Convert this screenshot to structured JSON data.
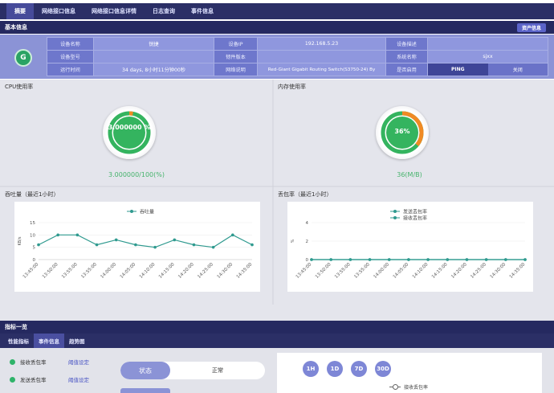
{
  "topnav": {
    "tabs": [
      "摘要",
      "网络接口信息",
      "网络接口信息详情",
      "日志查询",
      "事件信息"
    ]
  },
  "basic": {
    "title": "基本信息",
    "asset_button": "资产信息",
    "logo_glyph": "G",
    "rows": [
      [
        {
          "label": "设备名称",
          "value": "锐捷"
        },
        {
          "label": "设备IP",
          "value": "192.168.5.23"
        },
        {
          "label": "设备描述",
          "value": ""
        }
      ],
      [
        {
          "label": "设备型号",
          "value": ""
        },
        {
          "label": "韧件版本",
          "value": ""
        },
        {
          "label": "系统名称",
          "value": "sjxx"
        }
      ],
      [
        {
          "label": "运行时间",
          "value": "34 days, 8小时11分钟00秒"
        },
        {
          "label": "网络说明",
          "value": "Red-Giant Gigabit Routing Switch(S3750-24) By"
        },
        {
          "label": "是否启用",
          "value": ""
        }
      ]
    ],
    "ping_label": "PING",
    "close_label": "关闭"
  },
  "cpu": {
    "title": "CPU使用率",
    "gauge_text": "3.000000 %",
    "percent": 3,
    "caption": "3.000000/100(%)"
  },
  "memory": {
    "title": "内存使用率",
    "gauge_text": "36%",
    "percent": 36,
    "caption": "36(M/B)"
  },
  "throughput": {
    "title": "吞吐量（最近1小时）",
    "chart_data": {
      "type": "line",
      "x": [
        "13:45:00",
        "13:50:00",
        "13:55:00",
        "13:55:00",
        "14:00:00",
        "14:05:00",
        "14:10:00",
        "14:15:00",
        "14:20:00",
        "14:25:00",
        "14:30:00",
        "14:35:00"
      ],
      "series": [
        {
          "name": "吞吐量",
          "values": [
            6,
            10,
            10,
            6,
            8,
            6,
            5,
            8,
            6,
            5,
            10,
            6
          ]
        }
      ],
      "ylabel": "KB/s",
      "yticks": [
        0,
        5,
        10,
        15
      ],
      "ylim": [
        0,
        15
      ],
      "color": "#2f9a8f"
    }
  },
  "packet_loss": {
    "title": "丢包率（最近1小时）",
    "chart_data": {
      "type": "line",
      "x": [
        "13:45:00",
        "13:50:00",
        "13:55:00",
        "13:55:00",
        "14:00:00",
        "14:05:00",
        "14:10:00",
        "14:15:00",
        "14:20:00",
        "14:25:00",
        "14:30:00",
        "14:35:00"
      ],
      "series": [
        {
          "name": "发送丢包率",
          "values": [
            0,
            0,
            0,
            0,
            0,
            0,
            0,
            0,
            0,
            0,
            0,
            0
          ],
          "color": "#2f9a8f"
        },
        {
          "name": "接收丢包率",
          "values": [
            0,
            0,
            0,
            0,
            0,
            0,
            0,
            0,
            0,
            0,
            0,
            0
          ],
          "color": "#2f9a8f"
        }
      ],
      "ylabel": "%",
      "yticks": [
        0,
        2,
        4
      ],
      "ylim": [
        0,
        4
      ]
    }
  },
  "indicators": {
    "title": "指标一览",
    "tabs": [
      "性能指标",
      "事件信息",
      "趋势图"
    ],
    "metrics": [
      {
        "label": "接收丢包率",
        "link": "阈值设定"
      },
      {
        "label": "发送丢包率",
        "link": "阈值设定"
      }
    ],
    "status_label": "状态",
    "status_value": "正常",
    "ranges": [
      "1H",
      "1D",
      "7D",
      "30D"
    ],
    "legend": "接收丢包率"
  }
}
